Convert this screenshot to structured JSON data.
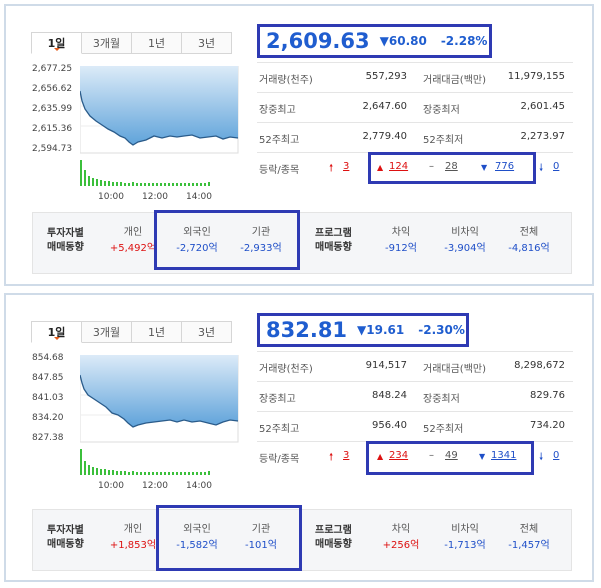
{
  "panels": [
    {
      "tabs": [
        "1일",
        "3개월",
        "1년",
        "3년"
      ],
      "chart": {
        "y_ticks": [
          "2,677.25",
          "2,656.62",
          "2,635.99",
          "2,615.36",
          "2,594.73"
        ],
        "x_ticks": [
          "10:00",
          "12:00",
          "14:00"
        ]
      },
      "price": "2,609.63",
      "change": "▼60.80",
      "change_pct": "-2.28%",
      "stats": [
        {
          "k1": "거래량(천주)",
          "v1": "557,293",
          "k2": "거래대금(백만)",
          "v2": "11,979,155"
        },
        {
          "k1": "장중최고",
          "v1": "2,647.60",
          "k2": "장중최저",
          "v2": "2,601.45"
        },
        {
          "k1": "52주최고",
          "v1": "2,779.40",
          "k2": "52주최저",
          "v2": "2,273.97"
        }
      ],
      "breadth": {
        "label": "등락/종목",
        "upper_limit": "3",
        "up": "124",
        "flat": "28",
        "down": "776",
        "lower_limit": "0"
      },
      "investors": {
        "label_line1": "투자자별",
        "label_line2": "매매동향",
        "individual": {
          "name": "개인",
          "value": "+5,492억"
        },
        "foreign": {
          "name": "외국인",
          "value": "-2,720억"
        },
        "institution": {
          "name": "기관",
          "value": "-2,933억"
        },
        "program_line1": "프로그램",
        "program_line2": "매매동향",
        "arbitrage": {
          "name": "차익",
          "value": "-912억"
        },
        "non_arbitrage": {
          "name": "비차익",
          "value": "-3,904억"
        },
        "total": {
          "name": "전체",
          "value": "-4,816억"
        }
      }
    },
    {
      "tabs": [
        "1일",
        "3개월",
        "1년",
        "3년"
      ],
      "chart": {
        "y_ticks": [
          "854.68",
          "847.85",
          "841.03",
          "834.20",
          "827.38"
        ],
        "x_ticks": [
          "10:00",
          "12:00",
          "14:00"
        ]
      },
      "price": "832.81",
      "change": "▼19.61",
      "change_pct": "-2.30%",
      "stats": [
        {
          "k1": "거래량(천주)",
          "v1": "914,517",
          "k2": "거래대금(백만)",
          "v2": "8,298,672"
        },
        {
          "k1": "장중최고",
          "v1": "848.24",
          "k2": "장중최저",
          "v2": "829.76"
        },
        {
          "k1": "52주최고",
          "v1": "956.40",
          "k2": "52주최저",
          "v2": "734.20"
        }
      ],
      "breadth": {
        "label": "등락/종목",
        "upper_limit": "3",
        "up": "234",
        "flat": "49",
        "down": "1341",
        "lower_limit": "0"
      },
      "investors": {
        "label_line1": "투자자별",
        "label_line2": "매매동향",
        "individual": {
          "name": "개인",
          "value": "+1,853억"
        },
        "foreign": {
          "name": "외국인",
          "value": "-1,582억"
        },
        "institution": {
          "name": "기관",
          "value": "-101억"
        },
        "program_line1": "프로그램",
        "program_line2": "매매동향",
        "arbitrage": {
          "name": "차익",
          "value": "+256억"
        },
        "non_arbitrage": {
          "name": "비차익",
          "value": "-1,713억"
        },
        "total": {
          "name": "전체",
          "value": "-1,457억"
        }
      }
    }
  ],
  "colors": {
    "accent": "#1f5dcf",
    "up": "#dd1111",
    "down": "#1f4fc8",
    "highlight": "#2e3ab3",
    "chart_fill": "#7fb6e3",
    "volume": "#3bbf3b"
  }
}
